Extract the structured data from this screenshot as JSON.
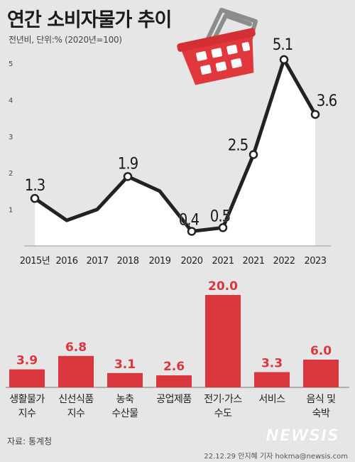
{
  "title": "연간 소비자물가 추이",
  "subtitle": "전년비, 단위:% (2020년=100)",
  "source": "자료: 통계청",
  "credit": "22.12.29 안지혜 기자  hokma@newsis.com",
  "logo_text": "NEWSIS",
  "colors": {
    "line": "#222222",
    "area": "#ffffff",
    "bar": "#d9363e",
    "bar_label": "#d9363e",
    "basket": "#e1383d",
    "basket_handle": "#8c8c8c"
  },
  "icons": [
    "shopping-basket-icon"
  ],
  "chart_data": [
    {
      "type": "line",
      "x": [
        "2015년",
        "2016",
        "2017",
        "2018",
        "2019",
        "2020",
        "2021",
        "2021",
        "2022",
        "2023"
      ],
      "values": [
        1.3,
        0.7,
        1.0,
        1.9,
        1.5,
        0.4,
        0.5,
        2.5,
        5.1,
        3.6
      ],
      "data_labels": [
        "1.3",
        "",
        "",
        "1.9",
        "",
        "0.4",
        "0.5",
        "2.5",
        "5.1",
        "3.6"
      ],
      "yticks": [
        1,
        2,
        3,
        4,
        5
      ],
      "ylim": [
        0,
        5.6
      ],
      "grid": false
    },
    {
      "type": "bar",
      "categories": [
        [
          "생활물가",
          "지수"
        ],
        [
          "신선식품",
          "지수"
        ],
        [
          "농축",
          "수산물"
        ],
        [
          "공업제품"
        ],
        [
          "전기·가스",
          "수도"
        ],
        [
          "서비스"
        ],
        [
          "음식 및",
          "숙박"
        ]
      ],
      "values": [
        3.9,
        6.8,
        3.1,
        2.6,
        20.0,
        3.3,
        6.0
      ],
      "data_labels": [
        "3.9",
        "6.8",
        "3.1",
        "2.6",
        "20.0",
        "3.3",
        "6.0"
      ]
    }
  ]
}
